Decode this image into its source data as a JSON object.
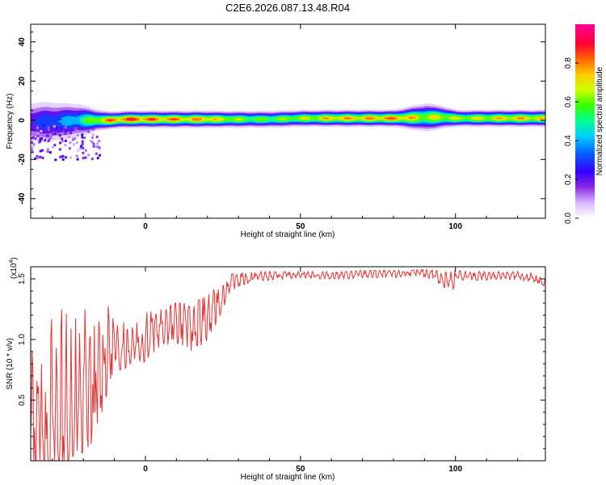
{
  "chart_data": [
    {
      "type": "heatmap",
      "title": "C2E6.2026.087.13.48.R04",
      "xlabel": "Height of straight line (km)",
      "ylabel": "Frequency (Hz)",
      "xlim": [
        -37,
        129
      ],
      "ylim": [
        -50,
        49
      ],
      "xticks": [
        0,
        50,
        100
      ],
      "yticks": [
        -40,
        -20,
        0,
        20,
        40
      ],
      "colorbar": {
        "label": "Normalized spectral amplitude",
        "range": [
          0.0,
          1.0
        ],
        "ticks": [
          0.0,
          0.2,
          0.4,
          0.6,
          0.8
        ],
        "tick_labels": [
          "0.0",
          "0.2",
          "0.4",
          "0.6",
          "0.8"
        ]
      },
      "series": [
        {
          "x": [
            -37,
            -32,
            -27,
            -22,
            -17,
            -12,
            -7,
            -2,
            3,
            8,
            13,
            18,
            23,
            28,
            33,
            40,
            50,
            60,
            70,
            80,
            90,
            95,
            100,
            110,
            120,
            129
          ],
          "center_frequency_hz": [
            -1,
            -1,
            -0.5,
            0,
            0,
            0,
            0.5,
            0.5,
            0.5,
            0.5,
            0.5,
            0.5,
            0.5,
            0.5,
            0.5,
            0.5,
            1,
            1,
            1,
            1,
            1.5,
            1.5,
            1,
            1,
            1,
            1
          ],
          "peak_amplitude": [
            0.35,
            0.4,
            0.45,
            0.55,
            0.75,
            0.9,
            0.95,
            0.95,
            0.9,
            0.9,
            0.85,
            0.9,
            0.8,
            0.75,
            0.7,
            0.7,
            0.75,
            0.85,
            0.85,
            0.9,
            0.75,
            0.8,
            0.75,
            0.8,
            0.85,
            0.8
          ],
          "bandwidth_hz": [
            8,
            8,
            7,
            6,
            4,
            3,
            3,
            3,
            3,
            3,
            3,
            3,
            3,
            3,
            3,
            3,
            3,
            3,
            3,
            3,
            5,
            4,
            3,
            3,
            3,
            3
          ]
        }
      ]
    },
    {
      "type": "line",
      "xlabel": "Height of straight line (km)",
      "ylabel": "SNR (10 * v/v)",
      "y_multiplier": "(x10",
      "y_multiplier_exp": "4",
      "y_multiplier_close": ")",
      "xlim": [
        -37,
        129
      ],
      "ylim": [
        0,
        1.6
      ],
      "xticks": [
        0,
        50,
        100
      ],
      "yticks": [
        0.5,
        1.0,
        1.5
      ],
      "ytick_labels": [
        "0.5",
        "1.0",
        "1.5"
      ],
      "color": "#e83333",
      "series": [
        {
          "x": [
            -37,
            -35,
            -33,
            -31,
            -29,
            -27,
            -25,
            -23,
            -21,
            -19,
            -17,
            -15,
            -13,
            -11,
            -9,
            -7,
            -5,
            -3,
            -1,
            1,
            3,
            5,
            7,
            9,
            11,
            13,
            15,
            17,
            19,
            21,
            23,
            25,
            27,
            29,
            31,
            33,
            35,
            40,
            45,
            50,
            55,
            60,
            65,
            70,
            75,
            80,
            85,
            90,
            92,
            95,
            97,
            99,
            101,
            105,
            110,
            115,
            120,
            125,
            129
          ],
          "y": [
            0.35,
            0.3,
            0.2,
            0.3,
            0.25,
            0.35,
            0.3,
            0.45,
            0.4,
            0.55,
            0.5,
            0.65,
            0.85,
            0.9,
            0.9,
            0.95,
            0.95,
            1.0,
            0.95,
            1.05,
            1.05,
            1.1,
            1.1,
            1.15,
            1.15,
            1.15,
            1.1,
            1.15,
            1.15,
            1.2,
            1.3,
            1.35,
            1.45,
            1.48,
            1.5,
            1.5,
            1.52,
            1.52,
            1.53,
            1.54,
            1.53,
            1.53,
            1.53,
            1.54,
            1.54,
            1.54,
            1.55,
            1.55,
            1.55,
            1.52,
            1.5,
            1.45,
            1.53,
            1.52,
            1.52,
            1.53,
            1.52,
            1.51,
            1.47
          ],
          "max_envelope": [
            0.8,
            1.2,
            1.05,
            1.15,
            1.2,
            1.25,
            1.25,
            1.2,
            1.1,
            1.3,
            1.1,
            1.15,
            1.35,
            1.2,
            1.2,
            1.2,
            1.25,
            1.2,
            1.15,
            1.25,
            1.2,
            1.25,
            1.25,
            1.3,
            1.3,
            1.3,
            1.25,
            1.32,
            1.35,
            1.38,
            1.45,
            1.45,
            1.53,
            1.55,
            1.55,
            1.56,
            1.56,
            1.56,
            1.56,
            1.56,
            1.56,
            1.56,
            1.56,
            1.57,
            1.57,
            1.57,
            1.57,
            1.58,
            1.58,
            1.57,
            1.58,
            1.58,
            1.57,
            1.56,
            1.56,
            1.56,
            1.56,
            1.55,
            1.52
          ],
          "min_envelope": [
            0.0,
            0.0,
            0.0,
            0.0,
            0.0,
            0.0,
            0.0,
            0.05,
            0.05,
            0.1,
            0.15,
            0.3,
            0.5,
            0.7,
            0.75,
            0.75,
            0.8,
            0.85,
            0.8,
            0.85,
            0.9,
            0.95,
            0.95,
            1.0,
            0.95,
            0.95,
            0.9,
            0.95,
            0.95,
            1.05,
            1.15,
            1.25,
            1.38,
            1.42,
            1.45,
            1.46,
            1.48,
            1.49,
            1.5,
            1.51,
            1.5,
            1.5,
            1.5,
            1.51,
            1.51,
            1.51,
            1.52,
            1.52,
            1.5,
            1.45,
            1.42,
            1.4,
            1.49,
            1.49,
            1.49,
            1.5,
            1.49,
            1.48,
            1.44
          ]
        }
      ]
    }
  ]
}
